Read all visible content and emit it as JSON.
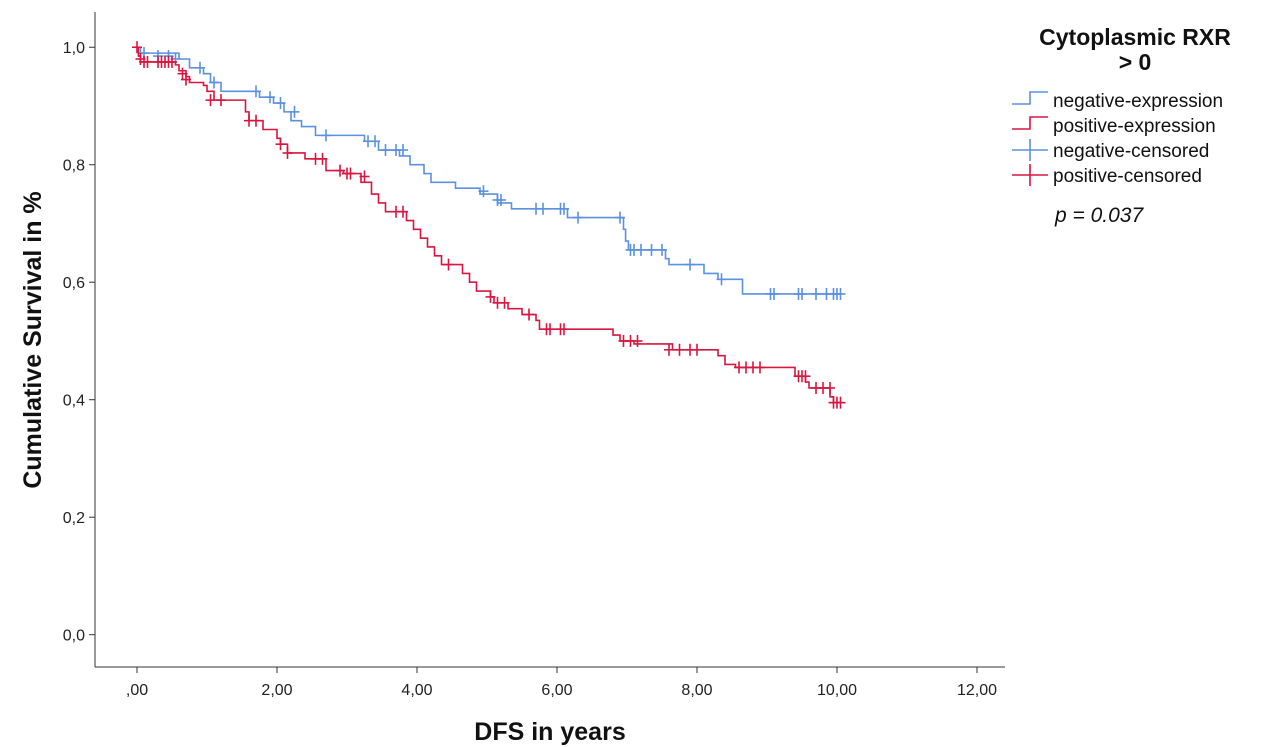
{
  "chart_data": {
    "type": "line",
    "subtype": "kaplan-meier step",
    "xlabel": "DFS in years",
    "ylabel": "Cumulative Survival in %",
    "xlim": [
      -0.6,
      12.4
    ],
    "ylim": [
      -0.055,
      1.06
    ],
    "x_ticks": [
      0,
      2,
      4,
      6,
      8,
      10,
      12
    ],
    "x_tick_labels": [
      ",00",
      "2,00",
      "4,00",
      "6,00",
      "8,00",
      "10,00",
      "12,00"
    ],
    "y_ticks": [
      0,
      0.2,
      0.4,
      0.6,
      0.8,
      1.0
    ],
    "y_tick_labels": [
      "0,0",
      "0,2",
      "0,4",
      "0,6",
      "0,8",
      "1,0"
    ],
    "grid": false,
    "legend": {
      "title_line1": "Cytoplasmic RXR",
      "title_line2": "> 0",
      "placement": "right",
      "entries": [
        {
          "label": "negative-expression",
          "kind": "line",
          "color": "#5b91e0"
        },
        {
          "label": "positive-expression",
          "kind": "line",
          "color": "#d8163f"
        },
        {
          "label": "negative-censored",
          "kind": "censor",
          "color": "#5b91e0"
        },
        {
          "label": "positive-censored",
          "kind": "censor",
          "color": "#d8163f"
        }
      ]
    },
    "annotation": "p = 0.037",
    "series": [
      {
        "name": "negative",
        "color": "#5b91e0",
        "steps": [
          [
            0,
            1.0
          ],
          [
            0.05,
            0.99
          ],
          [
            0.6,
            0.98
          ],
          [
            0.75,
            0.965
          ],
          [
            0.95,
            0.955
          ],
          [
            1.05,
            0.94
          ],
          [
            1.2,
            0.925
          ],
          [
            1.75,
            0.915
          ],
          [
            1.95,
            0.905
          ],
          [
            2.1,
            0.89
          ],
          [
            2.2,
            0.875
          ],
          [
            2.35,
            0.865
          ],
          [
            2.55,
            0.85
          ],
          [
            3.25,
            0.84
          ],
          [
            3.45,
            0.825
          ],
          [
            3.75,
            0.815
          ],
          [
            3.9,
            0.8
          ],
          [
            4.1,
            0.785
          ],
          [
            4.2,
            0.77
          ],
          [
            4.55,
            0.76
          ],
          [
            4.9,
            0.75
          ],
          [
            5.15,
            0.735
          ],
          [
            5.35,
            0.725
          ],
          [
            6.15,
            0.71
          ],
          [
            6.95,
            0.69
          ],
          [
            6.98,
            0.67
          ],
          [
            7.02,
            0.655
          ],
          [
            7.55,
            0.64
          ],
          [
            7.6,
            0.63
          ],
          [
            8.1,
            0.615
          ],
          [
            8.3,
            0.605
          ],
          [
            8.65,
            0.58
          ],
          [
            10.05,
            0.58
          ]
        ],
        "censored": [
          [
            0.1,
            0.99
          ],
          [
            0.3,
            0.985
          ],
          [
            0.45,
            0.985
          ],
          [
            0.55,
            0.98
          ],
          [
            0.9,
            0.965
          ],
          [
            1.1,
            0.94
          ],
          [
            1.7,
            0.925
          ],
          [
            1.9,
            0.915
          ],
          [
            2.05,
            0.905
          ],
          [
            2.25,
            0.89
          ],
          [
            2.7,
            0.85
          ],
          [
            3.3,
            0.84
          ],
          [
            3.4,
            0.84
          ],
          [
            3.55,
            0.825
          ],
          [
            3.7,
            0.825
          ],
          [
            3.8,
            0.825
          ],
          [
            4.95,
            0.755
          ],
          [
            5.15,
            0.74
          ],
          [
            5.2,
            0.74
          ],
          [
            5.7,
            0.725
          ],
          [
            5.8,
            0.725
          ],
          [
            6.05,
            0.725
          ],
          [
            6.1,
            0.725
          ],
          [
            6.3,
            0.71
          ],
          [
            6.9,
            0.71
          ],
          [
            7.05,
            0.655
          ],
          [
            7.1,
            0.655
          ],
          [
            7.2,
            0.655
          ],
          [
            7.35,
            0.655
          ],
          [
            7.5,
            0.655
          ],
          [
            7.9,
            0.63
          ],
          [
            8.35,
            0.605
          ],
          [
            9.05,
            0.58
          ],
          [
            9.1,
            0.58
          ],
          [
            9.45,
            0.58
          ],
          [
            9.5,
            0.58
          ],
          [
            9.7,
            0.58
          ],
          [
            9.85,
            0.58
          ],
          [
            9.95,
            0.58
          ],
          [
            10.0,
            0.58
          ],
          [
            10.05,
            0.58
          ]
        ]
      },
      {
        "name": "positive",
        "color": "#d8163f",
        "steps": [
          [
            0,
            1.0
          ],
          [
            0.02,
            0.985
          ],
          [
            0.05,
            0.975
          ],
          [
            0.55,
            0.97
          ],
          [
            0.6,
            0.96
          ],
          [
            0.7,
            0.95
          ],
          [
            0.75,
            0.94
          ],
          [
            0.95,
            0.935
          ],
          [
            1.0,
            0.925
          ],
          [
            1.1,
            0.91
          ],
          [
            1.55,
            0.89
          ],
          [
            1.6,
            0.875
          ],
          [
            1.8,
            0.86
          ],
          [
            2.0,
            0.845
          ],
          [
            2.05,
            0.835
          ],
          [
            2.15,
            0.82
          ],
          [
            2.4,
            0.81
          ],
          [
            2.7,
            0.79
          ],
          [
            2.95,
            0.785
          ],
          [
            3.2,
            0.77
          ],
          [
            3.35,
            0.75
          ],
          [
            3.45,
            0.735
          ],
          [
            3.55,
            0.72
          ],
          [
            3.85,
            0.705
          ],
          [
            3.95,
            0.69
          ],
          [
            4.05,
            0.675
          ],
          [
            4.15,
            0.66
          ],
          [
            4.25,
            0.645
          ],
          [
            4.35,
            0.63
          ],
          [
            4.65,
            0.615
          ],
          [
            4.75,
            0.6
          ],
          [
            4.85,
            0.585
          ],
          [
            5.05,
            0.575
          ],
          [
            5.1,
            0.565
          ],
          [
            5.3,
            0.555
          ],
          [
            5.5,
            0.545
          ],
          [
            5.7,
            0.535
          ],
          [
            5.75,
            0.52
          ],
          [
            6.8,
            0.51
          ],
          [
            6.9,
            0.5
          ],
          [
            7.1,
            0.495
          ],
          [
            7.65,
            0.485
          ],
          [
            8.3,
            0.475
          ],
          [
            8.4,
            0.46
          ],
          [
            8.55,
            0.455
          ],
          [
            9.4,
            0.44
          ],
          [
            9.55,
            0.43
          ],
          [
            9.6,
            0.42
          ],
          [
            9.9,
            0.405
          ],
          [
            9.95,
            0.395
          ],
          [
            10.05,
            0.395
          ]
        ],
        "censored": [
          [
            0.0,
            1.0
          ],
          [
            0.05,
            0.98
          ],
          [
            0.1,
            0.975
          ],
          [
            0.15,
            0.975
          ],
          [
            0.3,
            0.975
          ],
          [
            0.35,
            0.975
          ],
          [
            0.4,
            0.975
          ],
          [
            0.45,
            0.975
          ],
          [
            0.5,
            0.975
          ],
          [
            0.65,
            0.955
          ],
          [
            0.7,
            0.945
          ],
          [
            1.05,
            0.91
          ],
          [
            1.2,
            0.91
          ],
          [
            1.6,
            0.875
          ],
          [
            1.7,
            0.875
          ],
          [
            2.05,
            0.835
          ],
          [
            2.15,
            0.82
          ],
          [
            2.55,
            0.81
          ],
          [
            2.65,
            0.81
          ],
          [
            2.9,
            0.79
          ],
          [
            3.0,
            0.785
          ],
          [
            3.05,
            0.785
          ],
          [
            3.25,
            0.78
          ],
          [
            3.7,
            0.72
          ],
          [
            3.8,
            0.72
          ],
          [
            4.45,
            0.63
          ],
          [
            5.05,
            0.575
          ],
          [
            5.15,
            0.565
          ],
          [
            5.25,
            0.565
          ],
          [
            5.6,
            0.545
          ],
          [
            5.85,
            0.52
          ],
          [
            5.9,
            0.52
          ],
          [
            6.05,
            0.52
          ],
          [
            6.1,
            0.52
          ],
          [
            6.95,
            0.5
          ],
          [
            7.05,
            0.5
          ],
          [
            7.15,
            0.5
          ],
          [
            7.6,
            0.485
          ],
          [
            7.75,
            0.485
          ],
          [
            7.9,
            0.485
          ],
          [
            8.0,
            0.485
          ],
          [
            8.6,
            0.455
          ],
          [
            8.7,
            0.455
          ],
          [
            8.8,
            0.455
          ],
          [
            8.9,
            0.455
          ],
          [
            9.45,
            0.44
          ],
          [
            9.5,
            0.44
          ],
          [
            9.55,
            0.44
          ],
          [
            9.7,
            0.42
          ],
          [
            9.8,
            0.42
          ],
          [
            9.9,
            0.42
          ],
          [
            9.95,
            0.395
          ],
          [
            10.0,
            0.395
          ],
          [
            10.05,
            0.395
          ]
        ]
      }
    ]
  }
}
